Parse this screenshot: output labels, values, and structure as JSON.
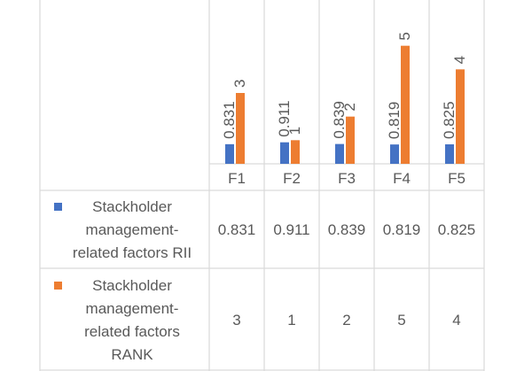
{
  "chart_data": {
    "type": "bar",
    "categories": [
      "F1",
      "F2",
      "F3",
      "F4",
      "F5"
    ],
    "series": [
      {
        "name": "Stackholder management-related factors RII",
        "name_lines": [
          "Stackholder",
          "management-",
          "related factors RII"
        ],
        "values": [
          0.831,
          0.911,
          0.839,
          0.819,
          0.825
        ],
        "labels": [
          "0.831",
          "0.911",
          "0.839",
          "0.819",
          "0.825"
        ],
        "color": "#4472C4"
      },
      {
        "name": "Stackholder management-related factors RANK",
        "name_lines": [
          "Stackholder",
          "management-",
          "related factors",
          "RANK"
        ],
        "values": [
          3,
          1,
          2,
          5,
          4
        ],
        "labels": [
          "3",
          "1",
          "2",
          "5",
          "4"
        ],
        "color": "#ED7D31"
      }
    ],
    "legend_position": "data-table",
    "grid": false,
    "ylim": [
      0,
      6
    ]
  },
  "colors": {
    "border": "#d9d9d9",
    "text": "#595959"
  }
}
